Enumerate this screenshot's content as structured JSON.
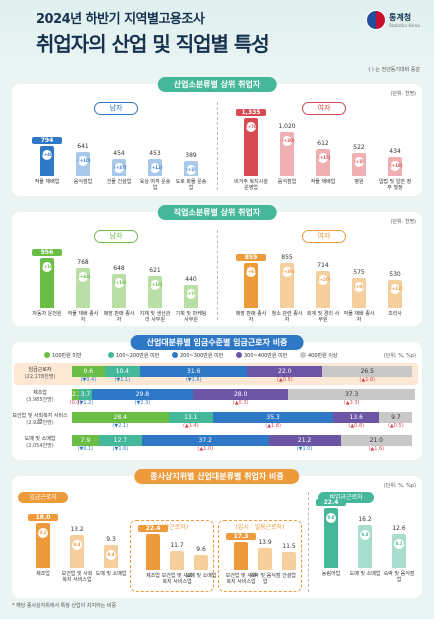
{
  "header": {
    "title1": "2024년 하반기 지역별고용조사",
    "title2": "취업자의 산업 및 직업별 특성",
    "logo_name": "통계청",
    "logo_sub": "Statistics Korea",
    "note": "( ) 는 전년동기대비 증감"
  },
  "colors": {
    "blue": "#2f78c6",
    "red": "#d74a51",
    "green": "#6abd45",
    "orange": "#ec9a3a",
    "teal": "#45b89a",
    "purple": "#6b56a6",
    "gray": "#c8c8c8"
  },
  "s1": {
    "title": "산업소분류별 상위 취업자",
    "unit": "(단위: 천명)",
    "male_tag": "남자",
    "female_tag": "여자",
    "male": [
      {
        "label": "작물 재배업",
        "value": "794",
        "change": "(+40)"
      },
      {
        "label": "음식점업",
        "value": "641",
        "change": "(+10)"
      },
      {
        "label": "건물 건설업",
        "value": "454",
        "change": "(+37)"
      },
      {
        "label": "육상 여객 운송업",
        "value": "453",
        "change": "(+12)"
      },
      {
        "label": "도로 화물 운송업",
        "value": "389",
        "change": "(+2)"
      }
    ],
    "female": [
      {
        "label": "비거주 복지시설 운영업",
        "value": "1,335",
        "change": "(+70)"
      },
      {
        "label": "음식점업",
        "value": "1,020",
        "change": "(+30)"
      },
      {
        "label": "작물 재배업",
        "value": "612",
        "change": "(+15)"
      },
      {
        "label": "병원",
        "value": "522",
        "change": "(+3)"
      },
      {
        "label": "입법 및 일반 정부 행정",
        "value": "434",
        "change": "(+18)"
      }
    ]
  },
  "s2": {
    "title": "직업소분류별 상위 취업자",
    "unit": "(단위: 천명)",
    "male_tag": "남자",
    "female_tag": "여자",
    "male": [
      {
        "label": "자동차 운전원",
        "value": "956",
        "change": "(+16)"
      },
      {
        "label": "작물 재배 종사자",
        "value": "768",
        "change": "(+44)"
      },
      {
        "label": "매장 판매 종사자",
        "value": "648",
        "change": "(+19)"
      },
      {
        "label": "지재 및 생산관리 사무원",
        "value": "621",
        "change": "(+18)"
      },
      {
        "label": "기획 및 마케팅 사무원",
        "value": "440",
        "change": "(+7)"
      }
    ],
    "female": [
      {
        "label": "매장 판매 종사자",
        "value": "859",
        "change": "(+61)"
      },
      {
        "label": "청소 관련 종사자",
        "value": "855",
        "change": "(+39)"
      },
      {
        "label": "회계 및 경리 사무원",
        "value": "714",
        "change": "(+20)"
      },
      {
        "label": "작물 재배 종사자",
        "value": "575",
        "change": "(+8)"
      },
      {
        "label": "조리사",
        "value": "530",
        "change": "(+12)"
      }
    ]
  },
  "s3": {
    "title": "산업대분류별 임금수준별 임금근로자 비중",
    "unit": "(단위: %, %p)",
    "legend": [
      "100만원 미만",
      "100~200만원 미만",
      "200~300만원 미만",
      "300~400만원 미만",
      "400만원 이상"
    ],
    "rows": [
      {
        "label": "임금근로자",
        "sub": "(22,178천명)",
        "values": [
          9.6,
          10.4,
          31.6,
          22.0,
          26.5
        ],
        "labels": [
          "9.6",
          "10.4",
          "31.6",
          "22.0",
          "26.5"
        ],
        "changes": [
          "(▼0.4)",
          "(▼1.1)",
          "(▼1.6)",
          "(▲0.5)",
          "(▲1.8)"
        ]
      },
      {
        "label": "제조업",
        "sub": "(3,985천명)",
        "values": [
          2.1,
          3.7,
          29.8,
          28.0,
          37.3
        ],
        "labels": [
          "2.1",
          "3.7",
          "29.8",
          "28.0",
          "37.3"
        ],
        "changes": [
          "(0.0)",
          "(▼1.2)",
          "(▼2.3)",
          "(▲0.3)",
          "(▲3.3)"
        ]
      },
      {
        "label": "보건업 및 사회복지 서비스업",
        "sub": "(2,927천명)",
        "values": [
          28.4,
          13.1,
          35.3,
          13.6,
          9.7
        ],
        "labels": [
          "28.4",
          "13.1",
          "35.3",
          "13.6",
          "9.7"
        ],
        "changes": [
          "(▼2.1)",
          "(▲1.4)",
          "(▲1.8)",
          "(▲0.8)",
          "(▲0.5)"
        ]
      },
      {
        "label": "도매 및 소매업",
        "sub": "(2,054천명)",
        "values": [
          7.9,
          12.7,
          37.2,
          21.2,
          21.0
        ],
        "labels": [
          "7.9",
          "12.7",
          "37.2",
          "21.2",
          "21.0"
        ],
        "changes": [
          "(▼0.1)",
          "(▼1.6)",
          "(▲1.0)",
          "(▼1.0)",
          "(▲1.6)"
        ]
      }
    ]
  },
  "s4": {
    "title": "종사상지위별 산업대분류별 취업자 비중",
    "unit": "(단위: %, %p)",
    "wage_tag": "임금근로자",
    "nonwage_tag": "비임금근로자",
    "regular_tag": "(상용근로자)",
    "temp_tag": "(임시 · 일용근로자)",
    "wage": [
      {
        "label": "제조업",
        "value": "18.0",
        "change": "0.2"
      },
      {
        "label": "보건업 및 사회복지 서비스업",
        "value": "13.2",
        "change": "0.4"
      },
      {
        "label": "도매 및 소매업",
        "value": "9.3",
        "change": "0.4"
      }
    ],
    "regular": [
      {
        "label": "제조업",
        "value": "22.4"
      },
      {
        "label": "보건업 및 사회복지 서비스업",
        "value": "11.7"
      },
      {
        "label": "도매 및 소매업",
        "value": "9.6"
      }
    ],
    "temp": [
      {
        "label": "보건업 및 사회복지 서비스업",
        "value": "17.3"
      },
      {
        "label": "숙박 및 음식점업",
        "value": "13.9"
      },
      {
        "label": "건설업",
        "value": "11.5"
      }
    ],
    "nonwage": [
      {
        "label": "농림어업",
        "value": "22.4",
        "change": "0.8"
      },
      {
        "label": "도매 및 소매업",
        "value": "16.2",
        "change": "0.8"
      },
      {
        "label": "숙박 및 음식점업",
        "value": "12.6",
        "change": "0.1"
      }
    ]
  },
  "footnote": "* 해당 종사상지위에서 특정 산업이 차지하는 비중"
}
